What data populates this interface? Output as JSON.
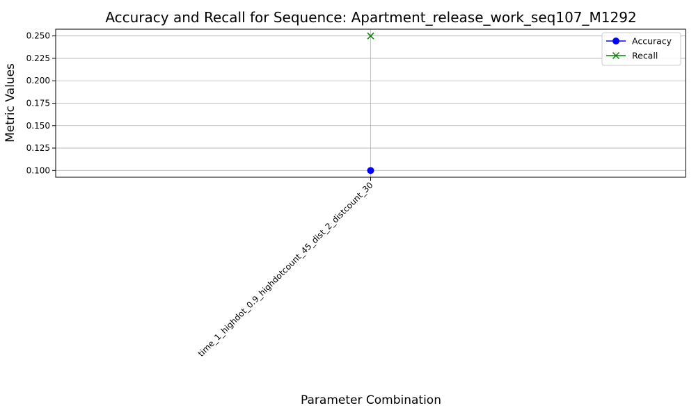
{
  "chart_data": {
    "type": "line",
    "title": "Accuracy and Recall for Sequence: Apartment_release_work_seq107_M1292",
    "xlabel": "Parameter Combination",
    "ylabel": "Metric Values",
    "categories": [
      "time_1_highdot_0.9_highdotcount_45_dist_2_distcount_30"
    ],
    "ylim": [
      0.0925,
      0.2575
    ],
    "yticks": [
      0.1,
      0.125,
      0.15,
      0.175,
      0.2,
      0.225,
      0.25
    ],
    "ytick_labels": [
      "0.100",
      "0.125",
      "0.150",
      "0.175",
      "0.200",
      "0.225",
      "0.250"
    ],
    "grid": true,
    "legend_position": "top-right",
    "series": [
      {
        "name": "Accuracy",
        "values": [
          0.1
        ],
        "color": "#0000ff",
        "marker": "circle"
      },
      {
        "name": "Recall",
        "values": [
          0.25
        ],
        "color": "#008000",
        "marker": "x"
      }
    ]
  }
}
